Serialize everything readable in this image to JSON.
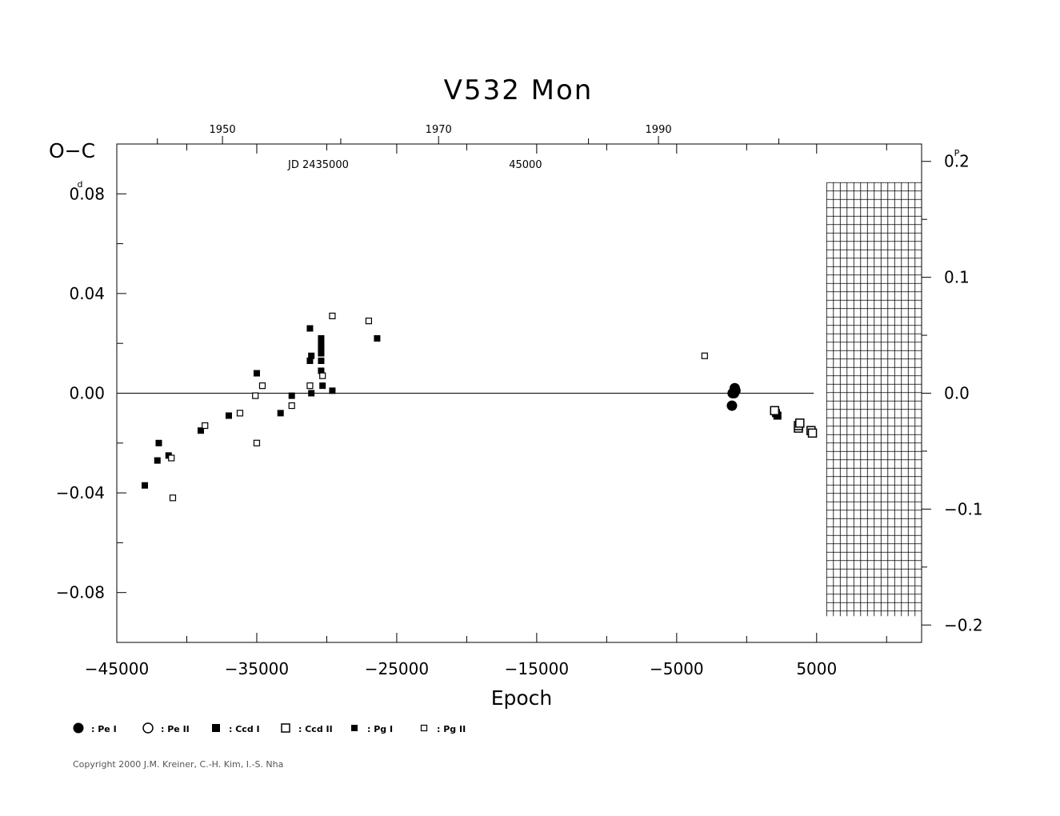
{
  "chart_data": {
    "type": "scatter",
    "title": "V532 Mon",
    "xlabel": "Epoch",
    "ylabel": "O−C",
    "y_unit": "d",
    "right_unit": "P",
    "xlim": [
      -45000,
      12500
    ],
    "ylim": [
      -0.1,
      0.1
    ],
    "x_ticks": [
      -45000,
      -35000,
      -25000,
      -15000,
      -5000,
      5000
    ],
    "x_tick_labels": [
      "−45000",
      "−35000",
      "−25000",
      "−15000",
      "−5000",
      "5000"
    ],
    "y_ticks": [
      0.08,
      0.04,
      0.0,
      -0.04,
      -0.08
    ],
    "y_tick_labels": [
      "0.08",
      "0.04",
      "0.00",
      "−0.04",
      "−0.08"
    ],
    "right_ticks": [
      0.2,
      0.1,
      0.0,
      -0.1,
      -0.2
    ],
    "right_tick_labels": [
      "0.2",
      "0.1",
      "0.0",
      "−0.1",
      "−0.2"
    ],
    "right_scale_per_day": 0.4651,
    "top_year_ticks": [
      {
        "epoch": -37450,
        "label": "1950"
      },
      {
        "epoch": -22010,
        "label": "1970"
      },
      {
        "epoch": -6300,
        "label": "1990"
      }
    ],
    "top_jd_ticks": [
      {
        "epoch": -30600,
        "label": "JD 2435000"
      },
      {
        "epoch": -15800,
        "label": "45000"
      }
    ],
    "zero_line": 0.0,
    "grid_region": {
      "x": [
        4800,
        12500
      ],
      "y": [
        -0.1,
        0.1
      ]
    },
    "series": [
      {
        "name": "Pe I",
        "marker": "filled-circle",
        "points": [
          [
            -1000,
            0.0
          ],
          [
            -800,
            0.001
          ],
          [
            -850,
            0.002
          ],
          [
            -1050,
            -0.005
          ],
          [
            -900,
            0.0
          ]
        ]
      },
      {
        "name": "Pe II",
        "marker": "open-circle",
        "points": []
      },
      {
        "name": "Ccd I",
        "marker": "filled-square",
        "points": [
          [
            2200,
            -0.009
          ],
          [
            2100,
            -0.008
          ]
        ]
      },
      {
        "name": "Ccd II",
        "marker": "open-square",
        "points": [
          [
            2000,
            -0.007
          ],
          [
            3700,
            -0.014
          ],
          [
            3700,
            -0.013
          ],
          [
            3800,
            -0.012
          ],
          [
            4600,
            -0.015
          ],
          [
            4700,
            -0.016
          ]
        ]
      },
      {
        "name": "Pg I",
        "marker": "small-filled-square",
        "points": [
          [
            -43000,
            -0.037
          ],
          [
            -42000,
            -0.02
          ],
          [
            -42100,
            -0.027
          ],
          [
            -41300,
            -0.025
          ],
          [
            -39000,
            -0.015
          ],
          [
            -37000,
            -0.009
          ],
          [
            -35000,
            0.008
          ],
          [
            -32500,
            -0.001
          ],
          [
            -33300,
            -0.008
          ],
          [
            -31200,
            0.026
          ],
          [
            -31200,
            0.013
          ],
          [
            -31100,
            0.015
          ],
          [
            -31100,
            0.0
          ],
          [
            -30400,
            0.022
          ],
          [
            -30400,
            0.02
          ],
          [
            -30400,
            0.018
          ],
          [
            -30400,
            0.016
          ],
          [
            -30400,
            0.013
          ],
          [
            -30400,
            0.009
          ],
          [
            -30300,
            0.003
          ],
          [
            -29600,
            0.001
          ],
          [
            -26400,
            0.022
          ]
        ]
      },
      {
        "name": "Pg II",
        "marker": "small-open-square",
        "points": [
          [
            -41100,
            -0.026
          ],
          [
            -41000,
            -0.042
          ],
          [
            -38700,
            -0.013
          ],
          [
            -36200,
            -0.008
          ],
          [
            -35100,
            -0.001
          ],
          [
            -35000,
            -0.02
          ],
          [
            -34600,
            0.003
          ],
          [
            -32500,
            -0.005
          ],
          [
            -31200,
            0.003
          ],
          [
            -30300,
            0.007
          ],
          [
            -29600,
            0.031
          ],
          [
            -27000,
            0.029
          ],
          [
            -3000,
            0.015
          ]
        ]
      }
    ],
    "legend_placement": "bottom-left",
    "legend": [
      {
        "marker": "filled-circle",
        "label": ": Pe I"
      },
      {
        "marker": "open-circle",
        "label": ": Pe II"
      },
      {
        "marker": "filled-square",
        "label": ": Ccd I"
      },
      {
        "marker": "open-square",
        "label": ": Ccd II"
      },
      {
        "marker": "small-filled-square",
        "label": ": Pg I"
      },
      {
        "marker": "small-open-square",
        "label": ": Pg II"
      }
    ]
  },
  "copyright": "Copyright 2000 J.M. Kreiner, C.-H. Kim, I.-S. Nha"
}
